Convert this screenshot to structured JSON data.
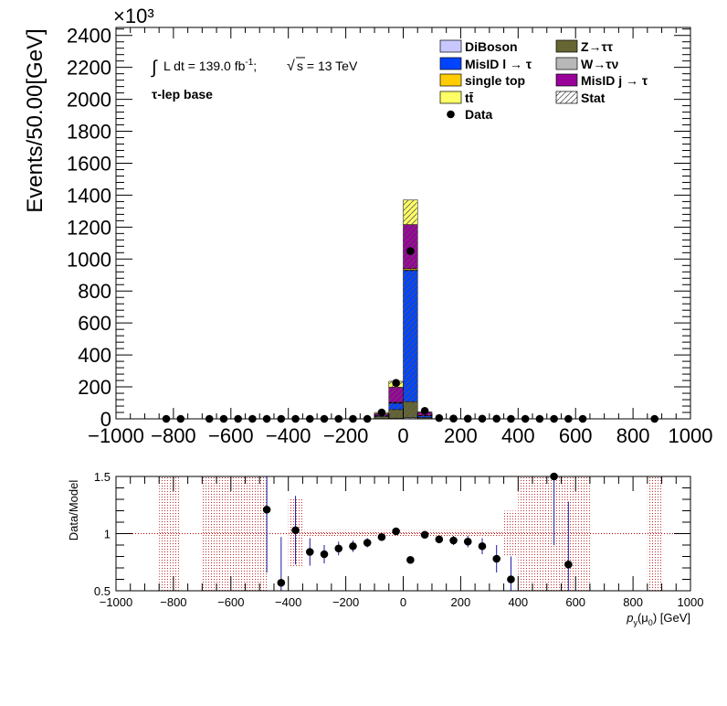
{
  "chart_data": [
    {
      "type": "bar",
      "stacked": true,
      "ylabel": "Events/50.00[GeV]",
      "yscale_label": "×10³",
      "xlim": [
        -1000,
        1000
      ],
      "ylim": [
        0,
        2450
      ],
      "x_ticks": [
        "−1000",
        "−800",
        "−600",
        "−400",
        "−200",
        "0",
        "200",
        "400",
        "600",
        "800",
        "1000"
      ],
      "y_ticks": [
        "0",
        "200",
        "400",
        "600",
        "800",
        "1000",
        "1200",
        "1400",
        "1600",
        "1800",
        "2000",
        "2200",
        "2400"
      ],
      "annotation_lumi_integral": "∫",
      "annotation_lumi": "L dt = 139.0 fb",
      "annotation_lumi_sup": "-1",
      "annotation_lumi_sep": ";",
      "annotation_sqrt": "√",
      "annotation_energy": "s = 13 TeV",
      "annotation_region": "τ-lep base",
      "bin_centers": [
        -75,
        -25,
        25,
        75
      ],
      "series": [
        {
          "name": "DiBoson",
          "color": "#c8c8ff",
          "values": [
            0,
            3,
            8,
            1
          ]
        },
        {
          "name": "Z→ττ",
          "color": "#666633",
          "values": [
            15,
            55,
            100,
            8
          ]
        },
        {
          "name": "MisID l → τ",
          "color": "#0044ff",
          "values": [
            5,
            40,
            820,
            10
          ]
        },
        {
          "name": "W→τν",
          "color": "#b8b8b8",
          "values": [
            0,
            2,
            5,
            1
          ]
        },
        {
          "name": "single top",
          "color": "#ffcc00",
          "values": [
            0,
            3,
            8,
            1
          ]
        },
        {
          "name": "MisID j → τ",
          "color": "#990099",
          "values": [
            12,
            95,
            275,
            20
          ]
        },
        {
          "name": "tt̄",
          "color": "#ffff66",
          "values": [
            8,
            37,
            154,
            2
          ]
        }
      ],
      "data_name": "Data",
      "data_points": {
        "x": [
          -825,
          -775,
          -675,
          -625,
          -575,
          -525,
          -475,
          -425,
          -375,
          -325,
          -275,
          -225,
          -175,
          -125,
          -75,
          -25,
          25,
          75,
          125,
          175,
          225,
          275,
          325,
          375,
          425,
          475,
          525,
          575,
          625,
          875
        ],
        "y": [
          0,
          0,
          0,
          0,
          0,
          0,
          0,
          0,
          0,
          0,
          0,
          0,
          0,
          0,
          40,
          225,
          1050,
          50,
          5,
          2,
          1,
          1,
          1,
          0,
          0,
          0,
          0,
          0,
          0,
          0
        ]
      },
      "legend": [
        {
          "name": "DiBoson",
          "style": "box",
          "color": "#c8c8ff"
        },
        {
          "name": "Z→ττ",
          "style": "box",
          "color": "#666633"
        },
        {
          "name": "MisID l → τ",
          "style": "box",
          "color": "#0044ff"
        },
        {
          "name": "W→τν",
          "style": "box",
          "color": "#b8b8b8"
        },
        {
          "name": "single top",
          "style": "box",
          "color": "#ffcc00"
        },
        {
          "name": "MisID j → τ",
          "style": "box",
          "color": "#990099"
        },
        {
          "name": "tt̄",
          "style": "box",
          "color": "#ffff66"
        },
        {
          "name": "Stat",
          "style": "hatch",
          "color": "#555555"
        },
        {
          "name": "Data",
          "style": "marker",
          "color": "#000000"
        }
      ]
    },
    {
      "type": "scatter",
      "ylabel": "Data/Model",
      "xlabel_main": "p",
      "xlabel_sub": "y",
      "xlabel_paren": "(μ",
      "xlabel_sub2": "0",
      "xlabel_unit": ") [GeV]",
      "xlim": [
        -1000,
        1000
      ],
      "ylim": [
        0.5,
        1.5
      ],
      "x_ticks": [
        "−1000",
        "−800",
        "−600",
        "−400",
        "−200",
        "0",
        "200",
        "400",
        "600",
        "800",
        "1000"
      ],
      "y_ticks": [
        "0.5",
        "1",
        "1.5"
      ],
      "reference_line": 1,
      "ratio_points": {
        "x": [
          -475,
          -425,
          -375,
          -325,
          -275,
          -225,
          -175,
          -125,
          -75,
          -25,
          25,
          75,
          125,
          175,
          225,
          275,
          325,
          375,
          525,
          575
        ],
        "y": [
          1.21,
          0.57,
          1.03,
          0.84,
          0.82,
          0.87,
          0.89,
          0.92,
          0.97,
          1.02,
          0.77,
          0.99,
          0.95,
          0.94,
          0.93,
          0.89,
          0.78,
          0.6,
          1.5,
          0.73
        ],
        "yerr": [
          0.55,
          0.4,
          0.3,
          0.12,
          0.08,
          0.06,
          0.05,
          0.04,
          0.03,
          0.02,
          0.02,
          0.03,
          0.03,
          0.04,
          0.05,
          0.07,
          0.12,
          0.2,
          0.6,
          0.55
        ]
      },
      "stat_bands": [
        {
          "x0": -850,
          "x1": -775,
          "lo": 0.5,
          "hi": 1.5
        },
        {
          "x0": -700,
          "x1": -475,
          "lo": 0.5,
          "hi": 1.5
        },
        {
          "x0": -400,
          "x1": -350,
          "lo": 0.7,
          "hi": 1.3
        },
        {
          "x0": -350,
          "x1": 350,
          "lo": 0.97,
          "hi": 1.03
        },
        {
          "x0": 350,
          "x1": 400,
          "lo": 0.8,
          "hi": 1.2
        },
        {
          "x0": 400,
          "x1": 650,
          "lo": 0.5,
          "hi": 1.5
        },
        {
          "x0": 850,
          "x1": 900,
          "lo": 0.5,
          "hi": 1.5
        }
      ]
    }
  ]
}
